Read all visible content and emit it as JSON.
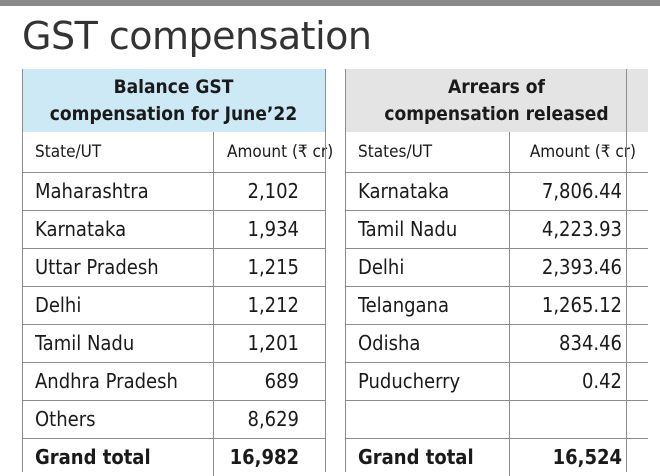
{
  "title": "GST compensation",
  "left": {
    "header": [
      "Balance GST",
      "compensation for June’22"
    ],
    "col_state": "State/UT",
    "col_amount": "Amount (₹ cr)",
    "rows": [
      {
        "state": "Maharashtra",
        "amount": "2,102"
      },
      {
        "state": "Karnataka",
        "amount": "1,934"
      },
      {
        "state": "Uttar Pradesh",
        "amount": "1,215"
      },
      {
        "state": "Delhi",
        "amount": "1,212"
      },
      {
        "state": "Tamil Nadu",
        "amount": "1,201"
      },
      {
        "state": "Andhra Pradesh",
        "amount": "689"
      },
      {
        "state": "Others",
        "amount": "8,629"
      }
    ],
    "total_label": "Grand total",
    "total_value": "16,982"
  },
  "right": {
    "header": [
      "Arrears of",
      "compensation released"
    ],
    "col_state": "States/UT",
    "col_amount": "Amount (₹ cr)",
    "rows": [
      {
        "state": "Karnataka",
        "amount": "7,806.44"
      },
      {
        "state": "Tamil Nadu",
        "amount": "4,223.93"
      },
      {
        "state": "Delhi",
        "amount": "2,393.46"
      },
      {
        "state": "Telangana",
        "amount": "1,265.12"
      },
      {
        "state": "Odisha",
        "amount": "834.46"
      },
      {
        "state": "Puducherry",
        "amount": "0.42"
      },
      {
        "state": "",
        "amount": ""
      }
    ],
    "total_label": "Grand total",
    "total_value": "16,524"
  }
}
